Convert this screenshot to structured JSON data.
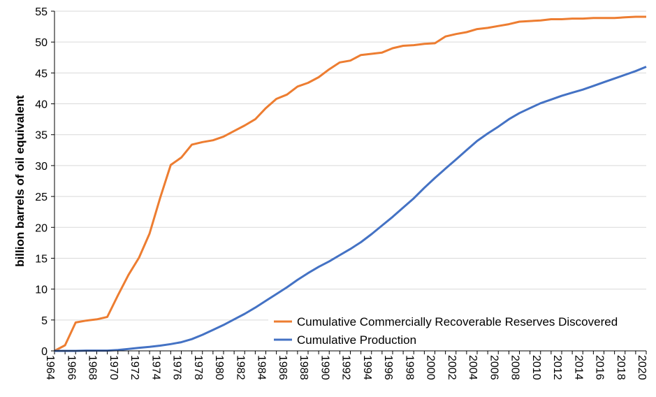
{
  "chart_data": {
    "type": "line",
    "title": "",
    "xlabel": "",
    "ylabel": "billion barrels of oil equivalent",
    "xlim": [
      1964,
      2020
    ],
    "ylim": [
      0,
      55
    ],
    "yticks": [
      0,
      5,
      10,
      15,
      20,
      25,
      30,
      35,
      40,
      45,
      50,
      55
    ],
    "xticks": [
      1964,
      1966,
      1968,
      1970,
      1972,
      1974,
      1976,
      1978,
      1980,
      1982,
      1984,
      1986,
      1988,
      1990,
      1992,
      1994,
      1996,
      1998,
      2000,
      2002,
      2004,
      2006,
      2008,
      2010,
      2012,
      2014,
      2016,
      2018,
      2020
    ],
    "grid": "horizontal",
    "legend_placement": "bottom-right",
    "x": [
      1964,
      1965,
      1966,
      1967,
      1968,
      1969,
      1970,
      1971,
      1972,
      1973,
      1974,
      1975,
      1976,
      1977,
      1978,
      1979,
      1980,
      1981,
      1982,
      1983,
      1984,
      1985,
      1986,
      1987,
      1988,
      1989,
      1990,
      1991,
      1992,
      1993,
      1994,
      1995,
      1996,
      1997,
      1998,
      1999,
      2000,
      2001,
      2002,
      2003,
      2004,
      2005,
      2006,
      2007,
      2008,
      2009,
      2010,
      2011,
      2012,
      2013,
      2014,
      2015,
      2016,
      2017,
      2018,
      2019,
      2020
    ],
    "series": [
      {
        "name": "Cumulative Commercially Recoverable Reserves Discovered",
        "color": "#ED7D31",
        "values": [
          0,
          0.9,
          4.6,
          4.9,
          5.1,
          5.5,
          9.0,
          12.3,
          15.1,
          19.0,
          24.8,
          30.1,
          31.3,
          33.4,
          33.8,
          34.1,
          34.7,
          35.6,
          36.5,
          37.5,
          39.3,
          40.8,
          41.5,
          42.8,
          43.4,
          44.3,
          45.6,
          46.7,
          47.0,
          47.9,
          48.1,
          48.3,
          49.0,
          49.4,
          49.5,
          49.7,
          49.8,
          50.9,
          51.3,
          51.6,
          52.1,
          52.3,
          52.6,
          52.9,
          53.3,
          53.4,
          53.5,
          53.7,
          53.7,
          53.8,
          53.8,
          53.9,
          53.9,
          53.9,
          54.0,
          54.1,
          54.1
        ]
      },
      {
        "name": "Cumulative Production",
        "color": "#4472C4",
        "values": [
          0,
          0,
          0,
          0.05,
          0.05,
          0.05,
          0.15,
          0.3,
          0.5,
          0.65,
          0.85,
          1.1,
          1.4,
          1.9,
          2.6,
          3.4,
          4.2,
          5.1,
          6.0,
          7.0,
          8.1,
          9.2,
          10.3,
          11.5,
          12.6,
          13.6,
          14.5,
          15.5,
          16.5,
          17.6,
          18.9,
          20.3,
          21.7,
          23.2,
          24.7,
          26.4,
          28.0,
          29.5,
          31.0,
          32.5,
          34.0,
          35.2,
          36.3,
          37.5,
          38.5,
          39.3,
          40.1,
          40.7,
          41.3,
          41.8,
          42.3,
          42.9,
          43.5,
          44.1,
          44.7,
          45.3,
          46.0
        ]
      }
    ]
  }
}
